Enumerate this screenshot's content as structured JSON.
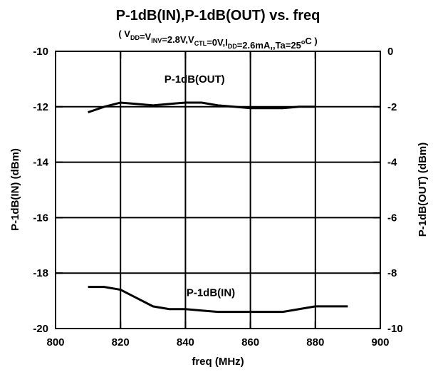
{
  "chart_data": {
    "type": "line",
    "title": "P-1dB(IN),P-1dB(OUT) vs. freq",
    "subtitle_parts": [
      {
        "text": "( V"
      },
      {
        "text": "DD",
        "shift": "sub"
      },
      {
        "text": "=V"
      },
      {
        "text": "INV",
        "shift": "sub"
      },
      {
        "text": "=2.8V,V"
      },
      {
        "text": "CTL",
        "shift": "sub"
      },
      {
        "text": "=0V,I"
      },
      {
        "text": "DD",
        "shift": "sub"
      },
      {
        "text": "=2.6mA,,Ta=25"
      },
      {
        "text": "o",
        "shift": "sup"
      },
      {
        "text": "C )"
      }
    ],
    "xlabel": "freq (MHz)",
    "ylabel": "P-1dB(IN) (dBm)",
    "y2label": "P-1dB(OUT) (dBm)",
    "xlim": [
      800,
      900
    ],
    "xticks": [
      800,
      820,
      840,
      860,
      880,
      900
    ],
    "ylim": [
      -20,
      -10
    ],
    "yticks": [
      -20,
      -18,
      -16,
      -14,
      -12,
      -10
    ],
    "y2lim": [
      -10,
      0
    ],
    "y2ticks": [
      -10,
      -8,
      -6,
      -4,
      -2,
      0
    ],
    "grid": true,
    "series": [
      {
        "name": "P-1dB(IN)",
        "color": "#000000",
        "x": [
          810,
          815,
          820,
          825,
          830,
          835,
          840,
          845,
          850,
          855,
          860,
          865,
          870,
          875,
          880,
          885,
          890
        ],
        "values": [
          -18.5,
          -18.5,
          -18.6,
          -18.9,
          -19.2,
          -19.3,
          -19.3,
          -19.35,
          -19.4,
          -19.4,
          -19.4,
          -19.4,
          -19.4,
          -19.3,
          -19.2,
          -19.2,
          -19.2
        ]
      },
      {
        "name": "P-1dB(OUT)",
        "color": "#000000",
        "axis": "y2",
        "x": [
          810,
          815,
          820,
          825,
          830,
          835,
          840,
          845,
          850,
          855,
          860,
          865,
          870,
          875,
          880
        ],
        "values": [
          -2.2,
          -2.0,
          -1.85,
          -1.9,
          -1.95,
          -1.9,
          -1.85,
          -1.85,
          -1.95,
          -2.0,
          -2.05,
          -2.05,
          -2.05,
          -2.0,
          -2.0
        ]
      }
    ]
  }
}
